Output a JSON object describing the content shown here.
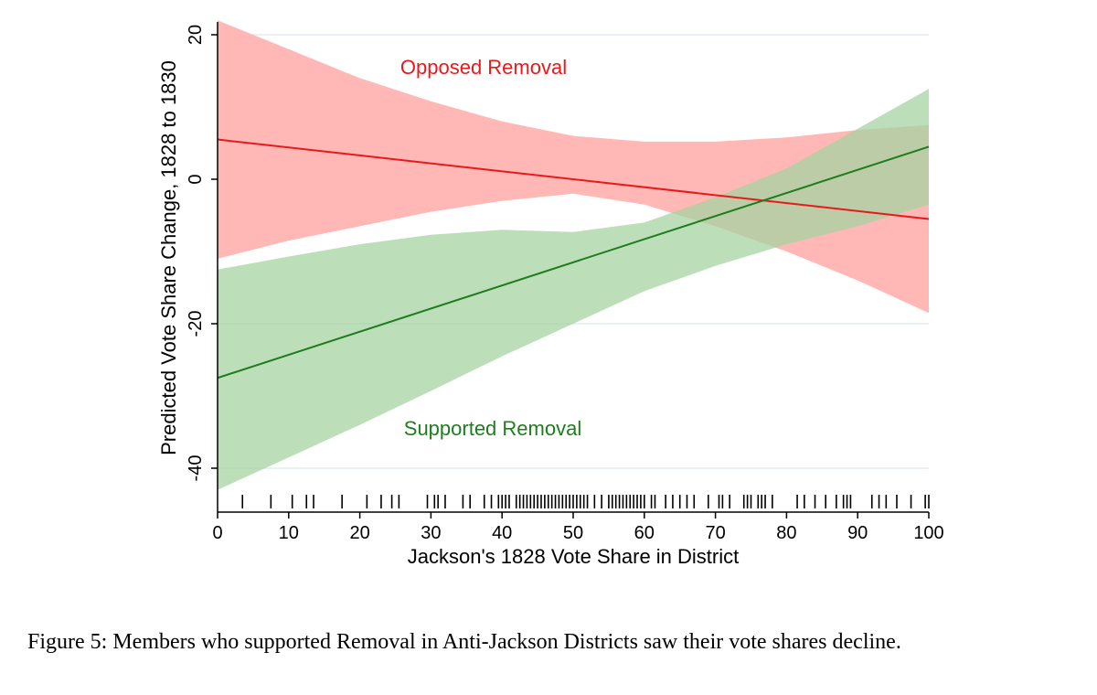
{
  "chart_data": {
    "type": "line",
    "title": "",
    "xlabel": "Jackson's 1828 Vote Share in District",
    "ylabel": "Predicted Vote Share Change, 1828 to 1830",
    "xlim": [
      0,
      100
    ],
    "ylim": [
      -46,
      22
    ],
    "xticks": [
      0,
      10,
      20,
      30,
      40,
      50,
      60,
      70,
      80,
      90,
      100
    ],
    "yticks": [
      20,
      0,
      -20,
      -40
    ],
    "grid": true,
    "series": [
      {
        "name": "Opposed Removal",
        "color": "#e8191c",
        "band_color": "#ffb8b5",
        "x": [
          0,
          100
        ],
        "y": [
          5.5,
          -5.5
        ],
        "ci": {
          "x": [
            0,
            10,
            20,
            30,
            40,
            50,
            60,
            70,
            80,
            90,
            100
          ],
          "lower": [
            -11,
            -8.5,
            -6.5,
            -4.5,
            -3,
            -2,
            -3.5,
            -6.5,
            -10,
            -14,
            -18.5
          ],
          "upper": [
            22,
            18,
            14,
            10.8,
            8,
            6,
            5.2,
            5.2,
            5.8,
            6.8,
            7.5
          ]
        }
      },
      {
        "name": "Supported Removal",
        "color": "#1e7d1e",
        "band_color": "#a6d3a2",
        "x": [
          0,
          100
        ],
        "y": [
          -27.5,
          4.5
        ],
        "ci": {
          "x": [
            0,
            10,
            20,
            30,
            40,
            50,
            60,
            70,
            80,
            90,
            100
          ],
          "lower": [
            -43,
            -38.5,
            -34,
            -29.3,
            -24.5,
            -20,
            -15.5,
            -12,
            -9,
            -6.5,
            -3.5
          ],
          "upper": [
            -12.5,
            -10.7,
            -9,
            -7.7,
            -7,
            -7.3,
            -6,
            -2.5,
            1.5,
            7,
            12.5
          ]
        }
      }
    ],
    "rug_x": [
      3.5,
      7.5,
      10.5,
      12.5,
      13.5,
      17.5,
      21,
      23,
      24.5,
      25.5,
      29.5,
      30.5,
      31,
      32,
      34.5,
      35.5,
      37.5,
      38.5,
      39.5,
      40,
      40.5,
      41,
      42,
      42.5,
      43,
      43.5,
      44,
      44.5,
      45,
      45.5,
      46,
      46.5,
      47,
      47.5,
      48,
      48.5,
      49,
      49.5,
      50,
      50.5,
      51,
      51.5,
      52,
      53,
      54,
      55,
      55.5,
      56,
      56.5,
      57,
      57.5,
      58,
      58.5,
      59,
      59.5,
      60,
      61,
      61.5,
      63,
      64,
      65,
      66,
      67,
      69,
      70.5,
      71,
      72,
      74,
      74.5,
      75,
      76,
      76.5,
      77,
      78,
      81.5,
      82.5,
      84,
      85.5,
      87,
      88,
      88.5,
      89,
      92,
      93,
      94,
      95.5,
      97.5,
      99.5,
      100
    ]
  },
  "caption": "Figure 5: Members who supported Removal in Anti-Jackson Districts saw their vote shares decline."
}
